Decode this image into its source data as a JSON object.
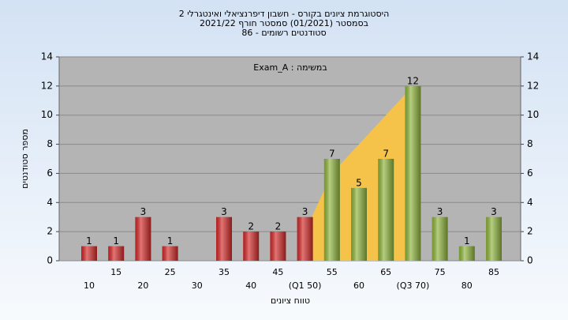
{
  "chart_data": {
    "type": "bar",
    "title": "היסטוגרמת ציונים בקורס - חשבון דיפרנציאלי ואינטגרלי 2",
    "subtitle": "בסמסטר  (01/2021)  סמסטר חורף 2021/22",
    "subtitle2": "סטודנטים רשומים - 86",
    "annotation": "במשימה : Exam_A",
    "x_label": "טווח ציונים",
    "y_label": "מספר סטודנטים",
    "categories": [
      "10",
      "15",
      "20",
      "25",
      "30",
      "35",
      "40",
      "45",
      "(Q1 50)",
      "55",
      "60",
      "65",
      "(Q3 70)",
      "75",
      "80",
      "85"
    ],
    "values": [
      1,
      1,
      3,
      1,
      null,
      3,
      2,
      2,
      3,
      7,
      5,
      7,
      12,
      3,
      1,
      3
    ],
    "colors": [
      "#d42a2a",
      "#d42a2a",
      "#d42a2a",
      "#d42a2a",
      "#d42a2a",
      "#d42a2a",
      "#d42a2a",
      "#d42a2a",
      "#d42a2a",
      "#8fb43c",
      "#8fb43c",
      "#8fb43c",
      "#8fb43c",
      "#8fb43c",
      "#8fb43c",
      "#8fb43c"
    ],
    "curve": {
      "color": "#f5c34a",
      "values": [
        null,
        null,
        null,
        null,
        null,
        null,
        null,
        null,
        2,
        6,
        8,
        10,
        12,
        null,
        null,
        null
      ]
    },
    "ylim": [
      0,
      14
    ],
    "yticks": [
      0,
      2,
      4,
      6,
      8,
      10,
      12,
      14
    ],
    "grid": true
  }
}
